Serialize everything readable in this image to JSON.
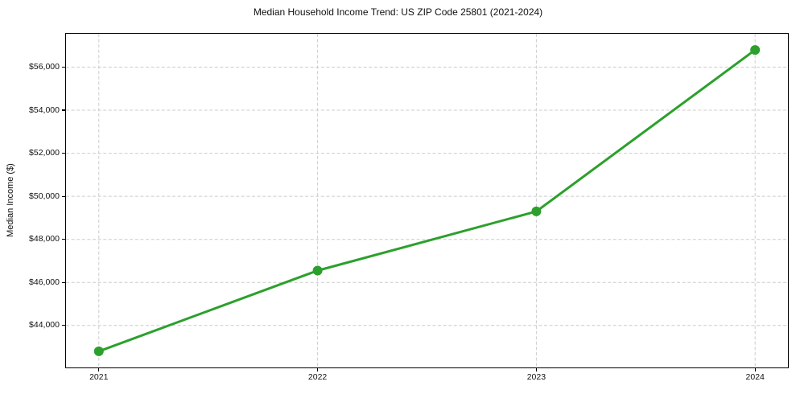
{
  "chart_data": {
    "type": "line",
    "title": "Median Household Income Trend: US ZIP Code 25801 (2021-2024)",
    "xlabel": "",
    "ylabel": "Median Income ($)",
    "x": [
      2021,
      2022,
      2023,
      2024
    ],
    "x_tick_labels": [
      "2021",
      "2022",
      "2023",
      "2024"
    ],
    "series": [
      {
        "name": "Median Household Income",
        "values": [
          42800,
          46550,
          49300,
          56800
        ]
      }
    ],
    "y_ticks": [
      44000,
      46000,
      48000,
      50000,
      52000,
      54000,
      56000
    ],
    "y_tick_labels": [
      "$44,000",
      "$46,000",
      "$48,000",
      "$50,000",
      "$52,000",
      "$54,000",
      "$56,000"
    ],
    "xlim": [
      2020.85,
      2024.15
    ],
    "ylim": [
      42050,
      57550
    ],
    "grid": true,
    "legend": "none",
    "marker": "circle",
    "colors": {
      "line": "#2ca02c",
      "marker": "#2ca02c",
      "grid": "#cccccc",
      "spine": "#000000",
      "text": "#111111",
      "background": "#ffffff"
    }
  }
}
